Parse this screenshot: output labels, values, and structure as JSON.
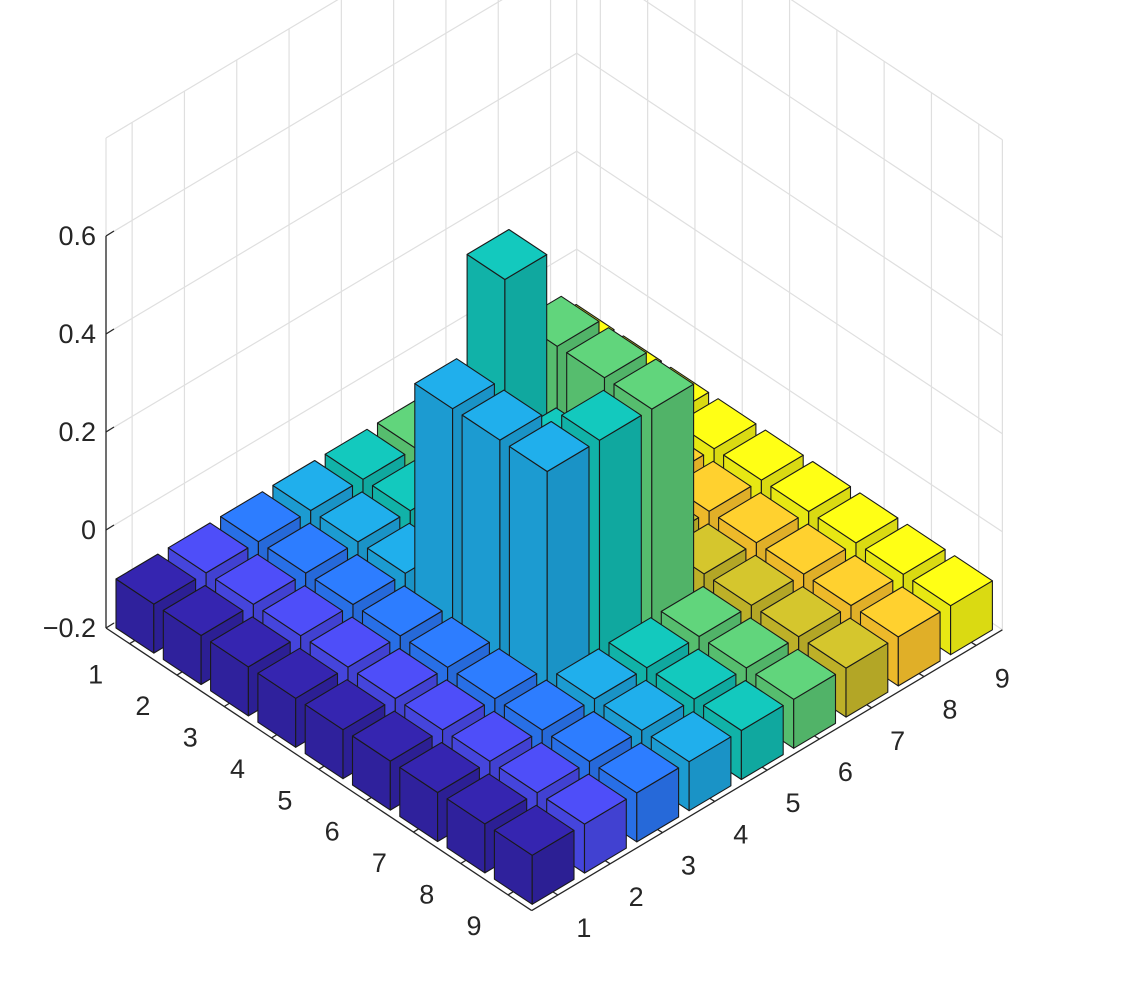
{
  "chart_data": {
    "type": "bar3",
    "title": "",
    "xlabel": "",
    "ylabel": "",
    "zlabel": "",
    "rows": [
      1,
      2,
      3,
      4,
      5,
      6,
      7,
      8,
      9
    ],
    "columns": [
      1,
      2,
      3,
      4,
      5,
      6,
      7,
      8,
      9
    ],
    "zlim": [
      -0.2,
      0.6
    ],
    "zticks": [
      "0.6",
      "0.4",
      "0.2",
      "0",
      "−0.2"
    ],
    "xticks": [
      "1",
      "2",
      "3",
      "4",
      "5",
      "6",
      "7",
      "8",
      "9"
    ],
    "yticks": [
      "1",
      "2",
      "3",
      "4",
      "5",
      "6",
      "7",
      "8",
      "9"
    ],
    "bar_base": -0.2,
    "grid": true,
    "colormap": "parula, colored by column",
    "column_colors": [
      "#3223a8",
      "#4a4aed",
      "#2b77f7",
      "#1ea7e1",
      "#12bfb5",
      "#5ccb76",
      "#cbbd2b",
      "#ffc72d",
      "#f8f814"
    ],
    "values": [
      [
        -0.1,
        -0.1,
        -0.1,
        -0.1,
        -0.1,
        -0.1,
        -0.1,
        -0.1,
        -0.1
      ],
      [
        -0.1,
        -0.1,
        -0.1,
        -0.1,
        -0.1,
        -0.1,
        -0.1,
        -0.1,
        -0.1
      ],
      [
        -0.1,
        -0.1,
        -0.1,
        -0.1,
        -0.1,
        -0.1,
        -0.1,
        -0.1,
        -0.1
      ],
      [
        -0.1,
        -0.1,
        -0.1,
        0.3,
        0.5,
        0.3,
        -0.1,
        -0.1,
        -0.1
      ],
      [
        -0.1,
        -0.1,
        -0.1,
        0.3,
        0.2,
        0.3,
        -0.1,
        -0.1,
        -0.1
      ],
      [
        -0.1,
        -0.1,
        -0.1,
        0.3,
        0.3,
        0.3,
        -0.1,
        -0.1,
        -0.1
      ],
      [
        -0.1,
        -0.1,
        -0.1,
        -0.1,
        -0.1,
        -0.1,
        -0.1,
        -0.1,
        -0.1
      ],
      [
        -0.1,
        -0.1,
        -0.1,
        -0.1,
        -0.1,
        -0.1,
        -0.1,
        -0.1,
        -0.1
      ],
      [
        -0.1,
        -0.1,
        -0.1,
        -0.1,
        -0.1,
        -0.1,
        -0.1,
        -0.1,
        -0.1
      ]
    ]
  }
}
